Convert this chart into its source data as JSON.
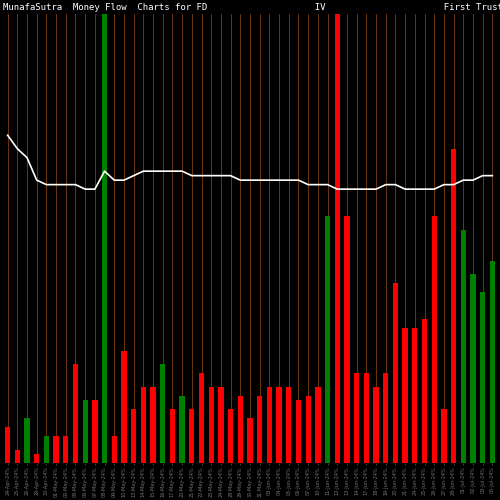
{
  "title": "MunafaSutra  Money Flow  Charts for FD                    IV                      First Trust Strat",
  "background_color": "#000000",
  "bar_colors": [
    "red",
    "red",
    "green",
    "red",
    "green",
    "red",
    "red",
    "red",
    "green",
    "red",
    "green",
    "red",
    "red",
    "red",
    "red",
    "red",
    "green",
    "red",
    "green",
    "red",
    "red",
    "red",
    "red",
    "red",
    "red",
    "red",
    "red",
    "red",
    "red",
    "red",
    "red",
    "red",
    "red",
    "green",
    "red",
    "red",
    "red",
    "red",
    "red",
    "red",
    "red",
    "red",
    "red",
    "red",
    "red",
    "red",
    "red",
    "green",
    "green",
    "green",
    "green"
  ],
  "bar_heights": [
    8,
    3,
    10,
    2,
    6,
    6,
    6,
    22,
    14,
    14,
    100,
    6,
    25,
    12,
    17,
    17,
    22,
    12,
    15,
    12,
    20,
    17,
    17,
    12,
    15,
    10,
    15,
    17,
    17,
    17,
    14,
    15,
    17,
    55,
    100,
    55,
    20,
    20,
    17,
    20,
    40,
    30,
    30,
    32,
    55,
    12,
    70,
    52,
    42,
    38,
    45
  ],
  "line_values": [
    73,
    70,
    68,
    63,
    62,
    62,
    62,
    62,
    61,
    61,
    65,
    63,
    63,
    64,
    65,
    65,
    65,
    65,
    65,
    64,
    64,
    64,
    64,
    64,
    63,
    63,
    63,
    63,
    63,
    63,
    63,
    62,
    62,
    62,
    61,
    61,
    61,
    61,
    61,
    62,
    62,
    61,
    61,
    61,
    61,
    62,
    62,
    63,
    63,
    64,
    64
  ],
  "grid_color": "#8B4513",
  "line_color": "#ffffff",
  "title_color": "#ffffff",
  "title_fontsize": 6.5,
  "tick_color": "#777777",
  "tick_fontsize": 3.5,
  "labels": [
    "24-Apr-24%",
    "25-Apr-24%",
    "26-Apr-24%",
    "29-Apr-24%",
    "30-Apr-24%",
    "01-May-24%",
    "02-May-24%",
    "03-May-24%",
    "06-May-24%",
    "07-May-24%",
    "08-May-24%",
    "09-May-24%",
    "10-May-24%",
    "13-May-24%",
    "14-May-24%",
    "15-May-24%",
    "16-May-24%",
    "17-May-24%",
    "20-May-24%",
    "21-May-24%",
    "22-May-24%",
    "23-May-24%",
    "24-May-24%",
    "28-May-24%",
    "29-May-24%",
    "30-May-24%",
    "31-May-24%",
    "03-Jun-24%",
    "04-Jun-24%",
    "05-Jun-24%",
    "06-Jun-24%",
    "07-Jun-24%",
    "10-Jun-24%",
    "11-Jun-24%",
    "12-Jun-24%",
    "13-Jun-24%",
    "14-Jun-24%",
    "17-Jun-24%",
    "18-Jun-24%",
    "19-Jun-24%",
    "20-Jun-24%",
    "21-Jun-24%",
    "24-Jun-24%",
    "25-Jun-24%",
    "26-Jun-24%",
    "27-Jun-24%",
    "28-Jun-24%",
    "01-Jul-24%",
    "02-Jul-24%",
    "03-Jul-24%",
    "05-Jul-24%"
  ]
}
